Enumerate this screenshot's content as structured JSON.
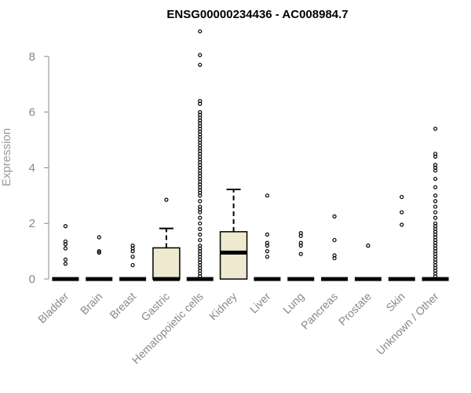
{
  "chart_data": {
    "type": "boxplot",
    "title": "ENSG00000234436 - AC008984.7",
    "xlabel": "",
    "ylabel": "Expression",
    "ylim": [
      0,
      9
    ],
    "yticks": [
      0,
      2,
      4,
      6,
      8
    ],
    "box_fill": "#efe9d0",
    "axis_color": "#888888",
    "categories": [
      "Bladder",
      "Brain",
      "Breast",
      "Gastric",
      "Hematopoietic cells",
      "Kidney",
      "Liver",
      "Lung",
      "Pancreas",
      "Prostate",
      "Skin",
      "Unknown / Other"
    ],
    "boxes": [
      {
        "category": "Bladder",
        "q1": 0,
        "median": 0,
        "q3": 0,
        "whisker_low": 0,
        "whisker_high": 0,
        "outliers": [
          0.55,
          0.7,
          1.1,
          1.25,
          1.35,
          1.9
        ]
      },
      {
        "category": "Brain",
        "q1": 0,
        "median": 0,
        "q3": 0,
        "whisker_low": 0,
        "whisker_high": 0,
        "outliers": [
          0.95,
          1.0,
          1.5
        ]
      },
      {
        "category": "Breast",
        "q1": 0,
        "median": 0,
        "q3": 0,
        "whisker_low": 0,
        "whisker_high": 0,
        "outliers": [
          0.5,
          0.8,
          1.0,
          1.1,
          1.2
        ]
      },
      {
        "category": "Gastric",
        "q1": 0,
        "median": 0,
        "q3": 1.12,
        "whisker_low": 0,
        "whisker_high": 1.82,
        "outliers": [
          2.85
        ]
      },
      {
        "category": "Hematopoietic cells",
        "q1": 0,
        "median": 0,
        "q3": 0,
        "whisker_low": 0,
        "whisker_high": 0,
        "outliers": [
          0.1,
          0.2,
          0.3,
          0.4,
          0.5,
          0.6,
          0.7,
          0.8,
          0.9,
          1.0,
          1.1,
          1.2,
          1.4,
          1.6,
          1.8,
          2.0,
          2.2,
          2.4,
          2.5,
          2.6,
          2.8,
          3.0,
          3.1,
          3.2,
          3.3,
          3.4,
          3.5,
          3.6,
          3.7,
          3.8,
          3.9,
          4.0,
          4.1,
          4.2,
          4.3,
          4.4,
          4.5,
          4.6,
          4.7,
          4.8,
          4.9,
          5.0,
          5.1,
          5.2,
          5.3,
          5.4,
          5.5,
          5.6,
          5.7,
          5.8,
          5.9,
          6.0,
          6.3,
          6.4,
          7.7,
          8.05,
          8.9
        ]
      },
      {
        "category": "Kidney",
        "q1": 0,
        "median": 0.95,
        "q3": 1.7,
        "whisker_low": 0,
        "whisker_high": 3.22,
        "outliers": []
      },
      {
        "category": "Liver",
        "q1": 0,
        "median": 0,
        "q3": 0,
        "whisker_low": 0,
        "whisker_high": 0,
        "outliers": [
          0.8,
          1.0,
          1.2,
          1.3,
          1.6,
          3.0
        ]
      },
      {
        "category": "Lung",
        "q1": 0,
        "median": 0,
        "q3": 0,
        "whisker_low": 0,
        "whisker_high": 0,
        "outliers": [
          0.9,
          1.2,
          1.3,
          1.55,
          1.65
        ]
      },
      {
        "category": "Pancreas",
        "q1": 0,
        "median": 0,
        "q3": 0,
        "whisker_low": 0,
        "whisker_high": 0,
        "outliers": [
          0.75,
          0.85,
          1.4,
          2.25
        ]
      },
      {
        "category": "Prostate",
        "q1": 0,
        "median": 0,
        "q3": 0,
        "whisker_low": 0,
        "whisker_high": 0,
        "outliers": [
          1.2
        ]
      },
      {
        "category": "Skin",
        "q1": 0,
        "median": 0,
        "q3": 0,
        "whisker_low": 0,
        "whisker_high": 0,
        "outliers": [
          1.95,
          2.4,
          2.95
        ]
      },
      {
        "category": "Unknown / Other",
        "q1": 0,
        "median": 0,
        "q3": 0,
        "whisker_low": 0,
        "whisker_high": 0,
        "outliers": [
          0.1,
          0.2,
          0.3,
          0.4,
          0.5,
          0.6,
          0.7,
          0.8,
          0.9,
          1.0,
          1.1,
          1.2,
          1.3,
          1.4,
          1.5,
          1.6,
          1.7,
          1.8,
          1.9,
          2.0,
          2.2,
          2.4,
          2.6,
          2.8,
          3.0,
          3.3,
          3.6,
          3.9,
          4.0,
          4.1,
          4.4,
          4.5,
          5.4
        ]
      }
    ]
  }
}
